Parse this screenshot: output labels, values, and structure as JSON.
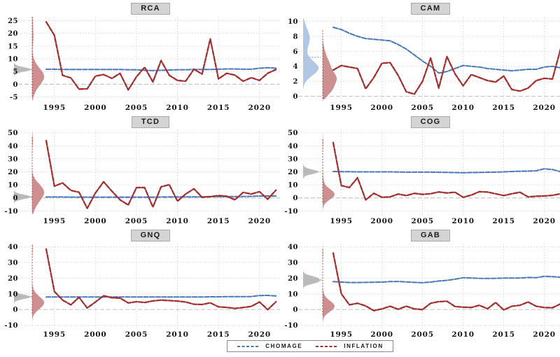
{
  "figure": {
    "background": "#ffffff"
  },
  "chart_data": {
    "type": "line",
    "x": [
      1994,
      1995,
      1996,
      1997,
      1998,
      1999,
      2000,
      2001,
      2002,
      2003,
      2004,
      2005,
      2006,
      2007,
      2008,
      2009,
      2010,
      2011,
      2012,
      2013,
      2014,
      2015,
      2016,
      2017,
      2018,
      2019,
      2020,
      2021,
      2022
    ],
    "x_ticks": [
      1995,
      2000,
      2005,
      2010,
      2015,
      2020
    ],
    "grid": true,
    "line_style": "dashed",
    "legend": {
      "position": "bottom-center",
      "items": [
        {
          "label": "CHOMAGE",
          "color": "#4878b8"
        },
        {
          "label": "INFLATION",
          "color": "#a33030"
        }
      ]
    },
    "panels": [
      {
        "title": "RCA",
        "y_ticks": [
          -5,
          0,
          5,
          10,
          15,
          20,
          25
        ],
        "ylim": [
          -6.5,
          26.5
        ],
        "series": [
          {
            "name": "CHOMAGE",
            "color": "#4878b8",
            "values": [
              5.9,
              5.9,
              5.8,
              5.8,
              5.8,
              5.8,
              5.8,
              5.8,
              5.8,
              5.8,
              5.7,
              5.7,
              5.5,
              5.4,
              5.5,
              5.6,
              5.7,
              5.7,
              5.8,
              5.8,
              5.8,
              5.9,
              6.0,
              6.0,
              5.9,
              5.9,
              6.3,
              6.5,
              6.3
            ]
          },
          {
            "name": "INFLATION",
            "color": "#a33030",
            "values": [
              24.5,
              19.2,
              3.5,
              2.5,
              -1.9,
              -1.8,
              3.2,
              3.8,
              2.3,
              4.3,
              -2.2,
              2.9,
              6.7,
              0.9,
              9.3,
              3.5,
              1.5,
              1.2,
              5.9,
              4.0,
              17.8,
              2.1,
              4.3,
              3.6,
              1.2,
              2.6,
              1.5,
              4.3,
              5.8
            ]
          }
        ],
        "density": {
          "chomage": {
            "fill": "#b5b5b5",
            "base": 20,
            "max_width": 24
          },
          "inflation": {
            "fill": "#c98585",
            "base": 46,
            "max_width": 17
          }
        }
      },
      {
        "title": "CAM",
        "y_ticks": [
          0,
          2,
          4,
          6,
          8,
          10
        ],
        "ylim": [
          -0.6,
          10.6
        ],
        "series": [
          {
            "name": "CHOMAGE",
            "color": "#4878b8",
            "values": [
              9.2,
              8.9,
              8.4,
              8.0,
              7.7,
              7.6,
              7.5,
              7.4,
              6.9,
              6.3,
              5.5,
              4.7,
              4.0,
              3.1,
              3.3,
              3.7,
              4.1,
              4.0,
              3.9,
              3.7,
              3.6,
              3.5,
              3.4,
              3.5,
              3.6,
              3.6,
              3.9,
              4.0,
              3.8
            ]
          },
          {
            "name": "INFLATION",
            "color": "#a33030",
            "values": [
              3.5,
              4.1,
              3.9,
              3.7,
              1.0,
              2.5,
              4.4,
              4.5,
              2.8,
              0.6,
              0.3,
              2.0,
              5.1,
              1.1,
              5.3,
              3.0,
              1.4,
              2.9,
              2.5,
              2.1,
              1.9,
              2.7,
              0.9,
              0.7,
              1.1,
              2.1,
              2.4,
              2.3,
              6.3
            ]
          }
        ],
        "density": {
          "chomage": {
            "fill": "#a9c3e2",
            "base": 33,
            "max_width": 22
          },
          "inflation": {
            "fill": "#c98585",
            "base": 61,
            "max_width": 20
          }
        }
      },
      {
        "title": "TCD",
        "y_ticks": [
          -10,
          0,
          10,
          20,
          30,
          40,
          50
        ],
        "ylim": [
          -12.5,
          52
        ],
        "series": [
          {
            "name": "CHOMAGE",
            "color": "#4878b8",
            "values": [
              0.7,
              0.7,
              0.7,
              0.6,
              0.6,
              0.6,
              0.6,
              0.6,
              0.6,
              0.6,
              0.6,
              0.6,
              0.6,
              0.6,
              0.7,
              0.8,
              0.8,
              0.8,
              0.8,
              0.9,
              1.0,
              1.0,
              1.0,
              1.1,
              1.1,
              1.2,
              1.4,
              1.5,
              1.4
            ]
          },
          {
            "name": "INFLATION",
            "color": "#a33030",
            "values": [
              44,
              9,
              11.5,
              5.8,
              4.4,
              -8,
              3.8,
              12.4,
              5.2,
              -1.5,
              -5.4,
              7.9,
              8.0,
              -7.0,
              8.5,
              10.2,
              -2.5,
              3.0,
              7.0,
              0.5,
              1.0,
              1.8,
              1.3,
              -1.5,
              4.2,
              3.0,
              4.8,
              -1.0,
              6.0
            ]
          }
        ],
        "density": {
          "chomage": {
            "fill": "#b5b5b5",
            "base": 20,
            "max_width": 24
          },
          "inflation": {
            "fill": "#c98585",
            "base": 46,
            "max_width": 17
          }
        }
      },
      {
        "title": "COG",
        "y_ticks": [
          -10,
          0,
          10,
          20,
          30,
          40,
          50
        ],
        "ylim": [
          -12.5,
          52
        ],
        "series": [
          {
            "name": "CHOMAGE",
            "color": "#4878b8",
            "values": [
              20.3,
              20.2,
              20.1,
              20.0,
              20.0,
              20.0,
              20.0,
              20.0,
              19.9,
              19.8,
              19.8,
              19.8,
              19.8,
              19.7,
              19.6,
              19.5,
              19.3,
              19.5,
              19.6,
              19.7,
              19.8,
              20.0,
              20.3,
              20.5,
              20.6,
              20.8,
              22.4,
              21.8,
              20.2
            ]
          },
          {
            "name": "INFLATION",
            "color": "#a33030",
            "values": [
              42.5,
              9.5,
              8.0,
              15.5,
              -1.5,
              3.5,
              0.5,
              0.8,
              3.0,
              1.8,
              3.5,
              2.7,
              3.2,
              4.6,
              3.8,
              4.4,
              0.5,
              2.2,
              4.8,
              4.5,
              3.2,
              1.8,
              3.2,
              4.4,
              0.8,
              1.3,
              1.5,
              2.0,
              3.2
            ]
          }
        ],
        "density": {
          "chomage": {
            "fill": "#b5b5b5",
            "base": 33,
            "max_width": 22
          },
          "inflation": {
            "fill": "#c98585",
            "base": 61,
            "max_width": 17
          }
        }
      },
      {
        "title": "GNQ",
        "y_ticks": [
          -10,
          0,
          10,
          20,
          30,
          40
        ],
        "ylim": [
          -11.5,
          42
        ],
        "series": [
          {
            "name": "CHOMAGE",
            "color": "#4878b8",
            "values": [
              8.0,
              8.0,
              8.0,
              8.0,
              8.0,
              8.0,
              8.0,
              8.0,
              8.0,
              8.0,
              8.0,
              8.0,
              8.0,
              8.0,
              8.0,
              8.0,
              8.0,
              8.0,
              8.0,
              8.0,
              8.1,
              8.1,
              8.2,
              8.2,
              8.2,
              8.3,
              8.9,
              9.0,
              8.7
            ]
          },
          {
            "name": "INFLATION",
            "color": "#a33030",
            "values": [
              38.5,
              11.5,
              6.0,
              3.0,
              7.8,
              1.0,
              4.8,
              8.8,
              7.5,
              7.3,
              4.2,
              5.0,
              4.5,
              5.5,
              6.0,
              5.7,
              5.4,
              4.8,
              3.4,
              3.2,
              4.3,
              1.7,
              1.4,
              0.7,
              1.3,
              2.0,
              4.8,
              -0.1,
              4.9
            ]
          }
        ],
        "density": {
          "chomage": {
            "fill": "#b5b5b5",
            "base": 20,
            "max_width": 24
          },
          "inflation": {
            "fill": "#c98585",
            "base": 46,
            "max_width": 17
          }
        }
      },
      {
        "title": "GAB",
        "y_ticks": [
          -10,
          0,
          10,
          20,
          30,
          40
        ],
        "ylim": [
          -11.5,
          42
        ],
        "series": [
          {
            "name": "CHOMAGE",
            "color": "#4878b8",
            "values": [
              17.8,
              17.5,
              17.2,
              17.2,
              17.3,
              17.4,
              17.5,
              17.8,
              17.9,
              17.6,
              17.3,
              17.1,
              17.5,
              18.2,
              18.6,
              19.3,
              20.3,
              20.1,
              19.9,
              19.8,
              19.9,
              20.0,
              20.0,
              20.1,
              20.4,
              20.3,
              21.2,
              20.9,
              20.6
            ]
          },
          {
            "name": "INFLATION",
            "color": "#a33030",
            "values": [
              36,
              10,
              3.0,
              4.0,
              2.3,
              -0.7,
              0.4,
              2.1,
              0.2,
              2.1,
              0.4,
              0.0,
              4.0,
              5.0,
              5.3,
              1.9,
              1.5,
              1.3,
              2.7,
              0.5,
              4.5,
              -0.2,
              2.1,
              2.7,
              4.8,
              2.1,
              1.3,
              1.1,
              3.6
            ]
          }
        ],
        "density": {
          "chomage": {
            "fill": "#b5b5b5",
            "base": 33,
            "max_width": 24
          },
          "inflation": {
            "fill": "#c98585",
            "base": 61,
            "max_width": 17
          }
        }
      }
    ]
  }
}
